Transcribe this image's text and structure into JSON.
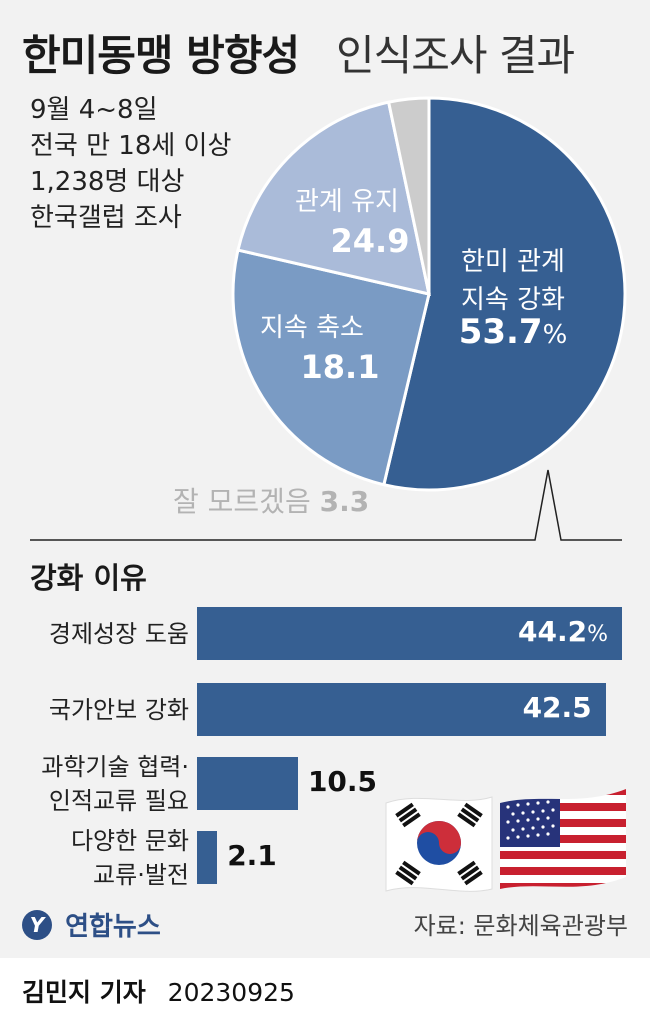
{
  "title": {
    "bold": "한미동맹 방향성",
    "light": "인식조사 결과"
  },
  "survey_info": [
    "9월 4~8일",
    "전국 만 18세 이상",
    "1,238명 대상",
    "한국갤럽 조사"
  ],
  "colors": {
    "strengthen": "#365f92",
    "maintain": "#7a9bc4",
    "reduce": "#aabbd9",
    "unknown": "#cccccc",
    "bar": "#365f92",
    "background": "#f2f2f2"
  },
  "chart_data": [
    {
      "type": "pie",
      "title": "",
      "slices": [
        {
          "label": [
            "한미 관계",
            "지속 강화"
          ],
          "value": 53.7,
          "display": "53.7",
          "unit": "%"
        },
        {
          "label": [
            "관계 유지"
          ],
          "value": 24.9,
          "display": "24.9"
        },
        {
          "label": [
            "지속 축소"
          ],
          "value": 18.1,
          "display": "18.1"
        },
        {
          "label": [
            "잘 모르겠음"
          ],
          "value": 3.3,
          "display": "3.3"
        }
      ]
    },
    {
      "type": "bar",
      "orientation": "horizontal",
      "title": "강화 이유",
      "categories": [
        [
          "경제성장 도움"
        ],
        [
          "국가안보 강화"
        ],
        [
          "과학기술 협력·",
          "인적교류 필요"
        ],
        [
          "다양한 문화",
          "교류·발전"
        ]
      ],
      "values": [
        44.2,
        42.5,
        10.5,
        2.1
      ],
      "display": [
        "44.2",
        "42.5",
        "10.5",
        "2.1"
      ],
      "unit": "%",
      "xlim": [
        0,
        44.2
      ]
    }
  ],
  "source": "자료: 문화체육관광부",
  "logo": "연합뉴스",
  "logo_mark": "Y",
  "footer": {
    "name": "김민지 기자",
    "date": "20230925"
  }
}
